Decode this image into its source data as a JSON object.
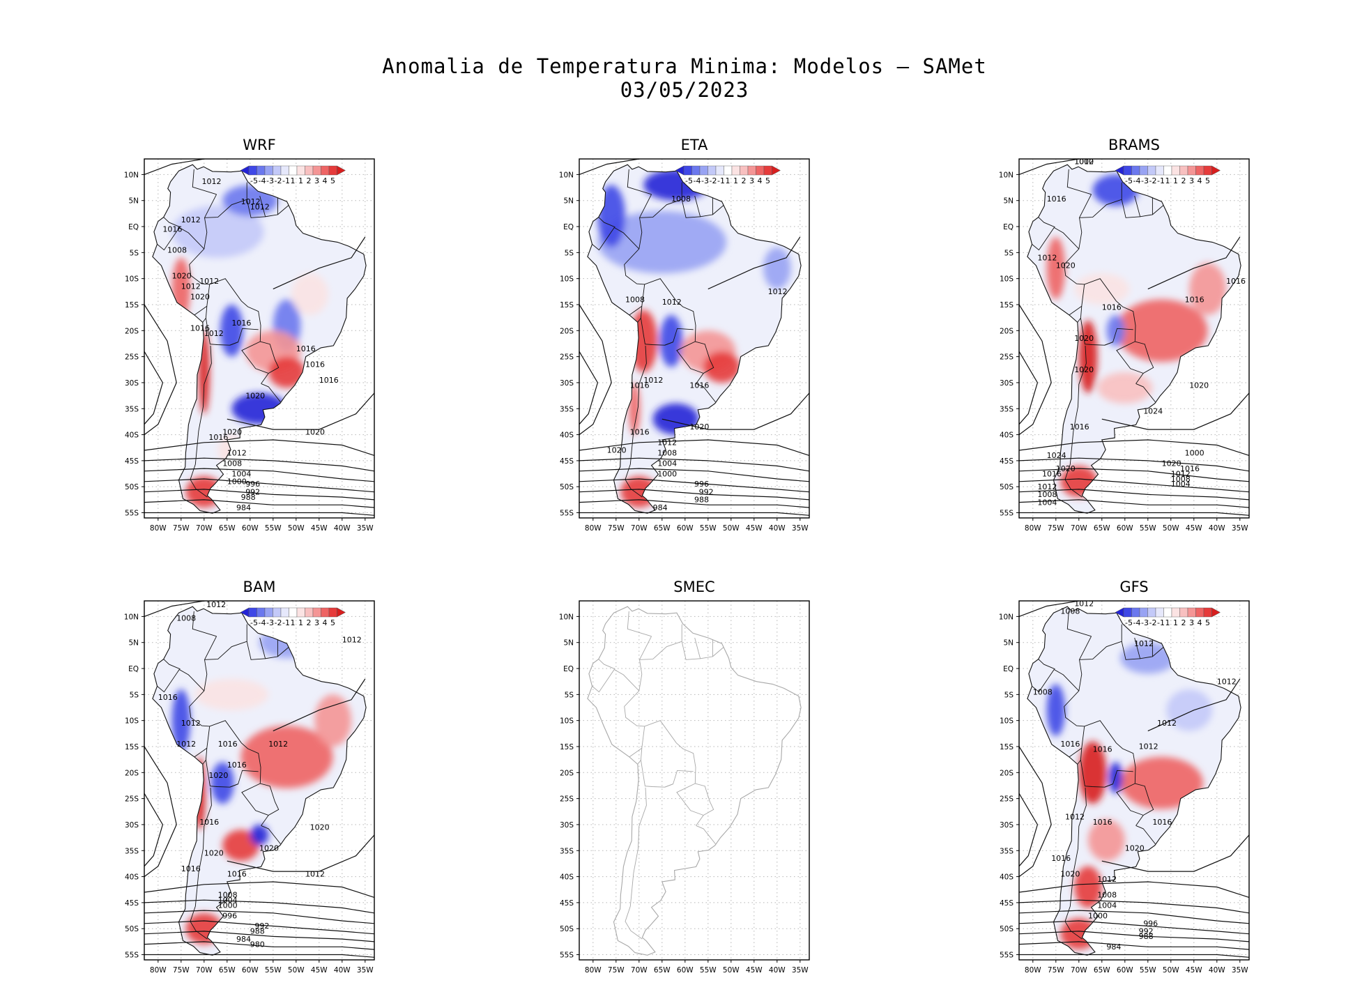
{
  "title": {
    "line1": "Anomalia de Temperatura Minima: Modelos — SAMet",
    "line2": "03/05/2023"
  },
  "axes": {
    "lat_labels": [
      "10N",
      "5N",
      "EQ",
      "5S",
      "10S",
      "15S",
      "20S",
      "25S",
      "30S",
      "35S",
      "40S",
      "45S",
      "50S",
      "55S"
    ],
    "lon_labels": [
      "80W",
      "75W",
      "70W",
      "65W",
      "60W",
      "55W",
      "50W",
      "45W",
      "40W",
      "35W"
    ]
  },
  "colorbar": {
    "labels": [
      "-5",
      "-4",
      "-3",
      "-2",
      "-1",
      "1",
      "1",
      "2",
      "3",
      "4",
      "5"
    ],
    "colors": [
      "#2323d6",
      "#3f48e6",
      "#6b78ee",
      "#98a3f3",
      "#c3c9f8",
      "#e6e8fb",
      "#ffffff",
      "#fbe3e3",
      "#f8c0c0",
      "#f49595",
      "#ee6464",
      "#e63b3b",
      "#d81e1e"
    ]
  },
  "panels": [
    {
      "name": "WRF",
      "row": 0,
      "col": 0,
      "isobars": [
        "1012",
        "1012",
        "1012",
        "1012",
        "1008",
        "1012",
        "1020",
        "1016",
        "1020",
        "1012",
        "1016",
        "1012",
        "1016",
        "1016",
        "1016",
        "1016",
        "1020",
        "1016",
        "1020",
        "1020",
        "1012",
        "1008",
        "1004",
        "1000",
        "996",
        "992",
        "988",
        "984"
      ]
    },
    {
      "name": "ETA",
      "row": 0,
      "col": 1,
      "isobars": [
        "1008",
        "1008",
        "1012",
        "1012",
        "1012",
        "1016",
        "1016",
        "1020",
        "1016",
        "1020",
        "1012",
        "1008",
        "1004",
        "1000",
        "996",
        "992",
        "988",
        "984"
      ]
    },
    {
      "name": "BRAMS",
      "row": 0,
      "col": 2,
      "isobars": [
        "1012",
        "1016",
        "1012",
        "1020",
        "1016",
        "1016",
        "1016",
        "1020",
        "1020",
        "1020",
        "1024",
        "1016",
        "1024",
        "1020",
        "1016",
        "1012",
        "1008",
        "1004",
        "1000",
        "1020",
        "1016",
        "1012",
        "1008",
        "1004",
        "1000"
      ]
    },
    {
      "name": "BAM",
      "row": 1,
      "col": 0,
      "isobars": [
        "1012",
        "1008",
        "1012",
        "1016",
        "1012",
        "1012",
        "1016",
        "1012",
        "1020",
        "1016",
        "1016",
        "1020",
        "1020",
        "1016",
        "1016",
        "1020",
        "1012",
        "1008",
        "1004",
        "1000",
        "996",
        "992",
        "988",
        "984",
        "980"
      ]
    },
    {
      "name": "SMEC",
      "row": 1,
      "col": 1,
      "isobars": []
    },
    {
      "name": "GFS",
      "row": 1,
      "col": 2,
      "isobars": [
        "1012",
        "1008",
        "1012",
        "1008",
        "1012",
        "1012",
        "1016",
        "1016",
        "1012",
        "1012",
        "1016",
        "1016",
        "1020",
        "1016",
        "1020",
        "1012",
        "1008",
        "1004",
        "1000",
        "996",
        "992",
        "988",
        "984"
      ]
    }
  ]
}
